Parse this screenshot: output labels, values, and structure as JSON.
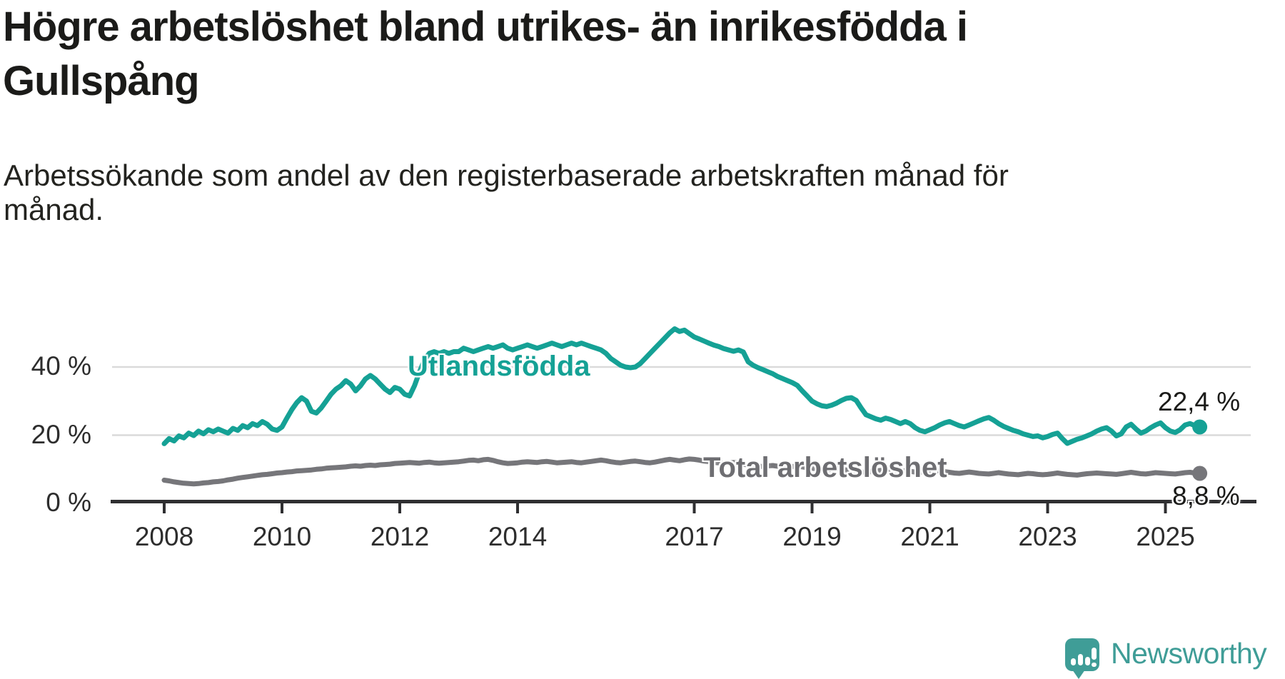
{
  "header": {
    "title_line1": "Högre arbetslöshet bland utrikes- än inrikesfödda i",
    "title_line2": "Gullspång",
    "subtitle_line1": "Arbetssökande som andel av den registerbaserade arbetskraften månad för",
    "subtitle_line2": "månad."
  },
  "branding": {
    "logo_text": "Newsworthy",
    "logo_color": "#3F9D97",
    "logo_icon": "bar-chart-speech-bubble"
  },
  "chart_data": {
    "type": "line",
    "title": "Högre arbetslöshet bland utrikes- än inrikesfödda i Gullspång",
    "subtitle": "Arbetssökande som andel av den registerbaserade arbetskraften månad för månad.",
    "x_unit": "month",
    "x_start": "2008-01",
    "x_end": "2025-08",
    "ylim": [
      0,
      52
    ],
    "grid": "horizontal",
    "grid_color": "#DADADA",
    "axis_color": "#2F2F31",
    "y_ticks": [
      {
        "label": "0 %",
        "value": 0
      },
      {
        "label": "20 %",
        "value": 20
      },
      {
        "label": "40 %",
        "value": 40
      }
    ],
    "x_ticks": [
      {
        "label": "2008",
        "year": 2008
      },
      {
        "label": "2010",
        "year": 2010
      },
      {
        "label": "2012",
        "year": 2012
      },
      {
        "label": "2014",
        "year": 2014
      },
      {
        "label": "2017",
        "year": 2017
      },
      {
        "label": "2019",
        "year": 2019
      },
      {
        "label": "2021",
        "year": 2021
      },
      {
        "label": "2023",
        "year": 2023
      },
      {
        "label": "2025",
        "year": 2025
      }
    ],
    "series": [
      {
        "name": "Utlandsfödda",
        "color": "#15A195",
        "end_label": "22,4 %",
        "end_value": 22.4,
        "values": [
          17.5,
          19.0,
          18.3,
          19.8,
          19.2,
          20.6,
          19.9,
          21.2,
          20.4,
          21.6,
          21.0,
          21.8,
          21.2,
          20.6,
          22.0,
          21.4,
          22.8,
          22.2,
          23.4,
          22.8,
          24.0,
          23.2,
          21.8,
          21.4,
          22.4,
          25.0,
          27.5,
          29.5,
          31.0,
          30.0,
          27.0,
          26.5,
          28.0,
          30.0,
          32.0,
          33.5,
          34.5,
          36.0,
          35.0,
          33.0,
          34.5,
          36.5,
          37.5,
          36.5,
          35.0,
          33.5,
          32.5,
          34.0,
          33.5,
          32.0,
          31.5,
          34.5,
          38.5,
          42.0,
          44.0,
          44.5,
          44.0,
          44.5,
          44.0,
          44.5,
          44.5,
          45.5,
          45.0,
          44.5,
          45.0,
          45.5,
          46.0,
          45.5,
          46.0,
          46.5,
          45.5,
          45.0,
          45.5,
          46.0,
          46.5,
          46.0,
          45.5,
          46.0,
          46.5,
          47.0,
          46.5,
          46.0,
          46.5,
          47.0,
          46.5,
          47.0,
          46.5,
          46.0,
          45.5,
          45.0,
          44.0,
          42.5,
          41.5,
          40.5,
          40.0,
          39.8,
          40.0,
          41.0,
          42.5,
          44.0,
          45.5,
          47.0,
          48.5,
          50.0,
          51.2,
          50.4,
          50.8,
          49.8,
          48.8,
          48.2,
          47.6,
          47.0,
          46.4,
          46.0,
          45.4,
          45.0,
          44.6,
          45.0,
          44.4,
          41.5,
          40.5,
          39.8,
          39.2,
          38.6,
          38.0,
          37.2,
          36.6,
          36.0,
          35.4,
          34.6,
          33.0,
          31.5,
          30.0,
          29.2,
          28.6,
          28.4,
          28.8,
          29.4,
          30.2,
          30.8,
          31.0,
          30.2,
          28.0,
          26.0,
          25.4,
          24.8,
          24.4,
          25.0,
          24.6,
          24.0,
          23.4,
          24.0,
          23.4,
          22.2,
          21.4,
          21.0,
          21.6,
          22.2,
          23.0,
          23.6,
          24.0,
          23.4,
          22.8,
          22.4,
          23.0,
          23.6,
          24.2,
          24.8,
          25.2,
          24.4,
          23.4,
          22.6,
          22.0,
          21.4,
          21.0,
          20.4,
          20.0,
          19.6,
          19.8,
          19.2,
          19.6,
          20.2,
          20.6,
          19.0,
          17.6,
          18.2,
          18.8,
          19.2,
          19.8,
          20.4,
          21.2,
          21.8,
          22.2,
          21.2,
          19.8,
          20.4,
          22.4,
          23.2,
          21.8,
          20.6,
          21.2,
          22.2,
          23.0,
          23.6,
          22.2,
          21.2,
          20.8,
          21.6,
          23.0,
          23.4,
          22.8,
          22.4
        ]
      },
      {
        "name": "Total arbetslöshet",
        "color": "#76767A",
        "end_label": "8,8 %",
        "end_value": 8.8,
        "values": [
          6.8,
          6.6,
          6.3,
          6.1,
          5.9,
          5.8,
          5.7,
          5.8,
          6.0,
          6.1,
          6.3,
          6.4,
          6.6,
          6.9,
          7.1,
          7.4,
          7.6,
          7.8,
          8.0,
          8.2,
          8.4,
          8.5,
          8.7,
          8.9,
          9.0,
          9.2,
          9.3,
          9.5,
          9.6,
          9.7,
          9.8,
          10.0,
          10.1,
          10.3,
          10.4,
          10.5,
          10.6,
          10.7,
          10.9,
          11.0,
          10.9,
          11.1,
          11.2,
          11.1,
          11.3,
          11.4,
          11.5,
          11.7,
          11.8,
          11.9,
          12.0,
          11.9,
          11.8,
          12.0,
          12.1,
          11.9,
          11.8,
          11.9,
          12.0,
          12.1,
          12.2,
          12.4,
          12.6,
          12.7,
          12.5,
          12.8,
          12.9,
          12.6,
          12.2,
          11.9,
          11.7,
          11.8,
          11.9,
          12.1,
          12.2,
          12.1,
          12.0,
          12.2,
          12.3,
          12.1,
          11.9,
          12.0,
          12.1,
          12.2,
          12.0,
          11.9,
          12.1,
          12.3,
          12.5,
          12.7,
          12.5,
          12.2,
          12.0,
          11.9,
          12.1,
          12.3,
          12.4,
          12.2,
          12.0,
          11.9,
          12.1,
          12.4,
          12.7,
          12.9,
          12.7,
          12.5,
          12.8,
          13.0,
          12.9,
          12.7,
          12.4,
          12.2,
          12.0,
          11.9,
          11.7,
          11.8,
          12.0,
          11.8,
          11.5,
          11.2,
          11.0,
          10.9,
          10.8,
          11.0,
          11.1,
          10.9,
          10.7,
          10.6,
          10.8,
          10.9,
          10.7,
          10.5,
          10.3,
          10.1,
          9.9,
          9.8,
          10.0,
          10.2,
          10.0,
          9.8,
          9.6,
          9.4,
          9.2,
          9.1,
          9.3,
          9.5,
          9.7,
          9.9,
          9.7,
          9.5,
          9.4,
          9.6,
          9.4,
          9.2,
          9.1,
          9.3,
          9.5,
          9.7,
          9.5,
          9.3,
          9.1,
          8.9,
          8.8,
          9.0,
          9.2,
          9.0,
          8.8,
          8.7,
          8.6,
          8.8,
          9.0,
          8.8,
          8.6,
          8.5,
          8.4,
          8.6,
          8.8,
          8.7,
          8.5,
          8.4,
          8.5,
          8.7,
          8.9,
          8.7,
          8.5,
          8.4,
          8.3,
          8.5,
          8.7,
          8.8,
          8.9,
          8.8,
          8.7,
          8.6,
          8.5,
          8.7,
          8.9,
          9.1,
          8.9,
          8.7,
          8.6,
          8.8,
          9.0,
          8.9,
          8.8,
          8.7,
          8.6,
          8.8,
          9.0,
          9.1,
          8.9,
          8.8
        ]
      }
    ]
  }
}
